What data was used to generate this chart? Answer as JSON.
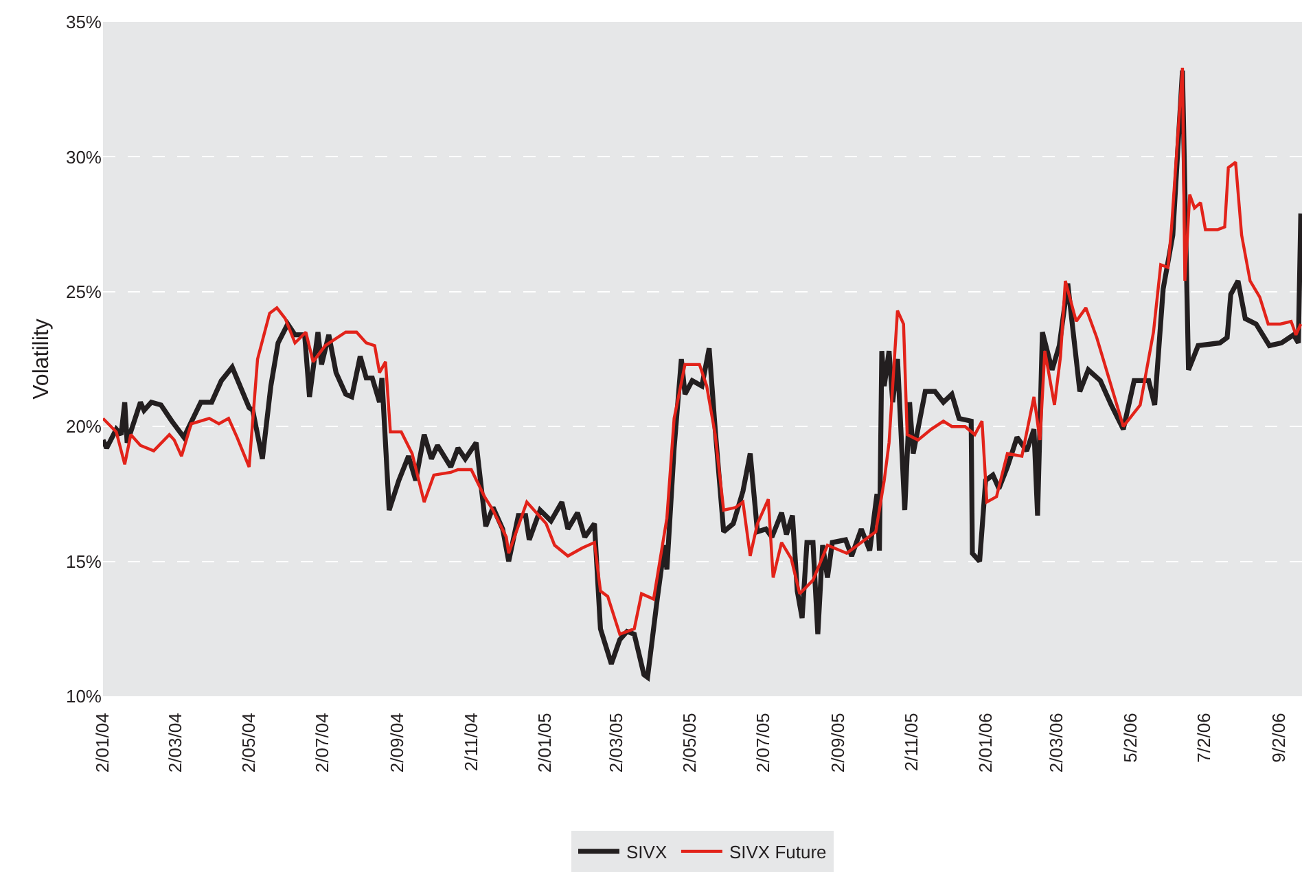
{
  "chart_data": {
    "type": "line",
    "ylabel": "Volatility",
    "grid": "y",
    "legend": "bottom",
    "line_style": "solid",
    "marker": "none",
    "xlim": [
      "2004-01-02",
      "2006-09-21"
    ],
    "xticks": [
      {
        "value": "2004-01-02",
        "label": "2/01/04"
      },
      {
        "value": "2004-03-02",
        "label": "2/03/04"
      },
      {
        "value": "2004-05-02",
        "label": "2/05/04"
      },
      {
        "value": "2004-07-02",
        "label": "2/07/04"
      },
      {
        "value": "2004-09-02",
        "label": "2/09/04"
      },
      {
        "value": "2004-11-02",
        "label": "2/11/04"
      },
      {
        "value": "2005-01-02",
        "label": "2/01/05"
      },
      {
        "value": "2005-03-02",
        "label": "2/03/05"
      },
      {
        "value": "2005-05-02",
        "label": "2/05/05"
      },
      {
        "value": "2005-07-02",
        "label": "2/07/05"
      },
      {
        "value": "2005-09-02",
        "label": "2/09/05"
      },
      {
        "value": "2005-11-02",
        "label": "2/11/05"
      },
      {
        "value": "2006-01-02",
        "label": "2/01/06"
      },
      {
        "value": "2006-03-02",
        "label": "2/03/06"
      },
      {
        "value": "2006-05-02",
        "label": "5/2/06"
      },
      {
        "value": "2006-07-02",
        "label": "7/2/06"
      },
      {
        "value": "2006-09-02",
        "label": "9/2/06"
      }
    ],
    "ylim": [
      10,
      35
    ],
    "yticks": [
      {
        "value": 10,
        "label": "10%"
      },
      {
        "value": 15,
        "label": "15%"
      },
      {
        "value": 20,
        "label": "20%"
      },
      {
        "value": 25,
        "label": "25%"
      },
      {
        "value": 30,
        "label": "30%"
      },
      {
        "value": 35,
        "label": "35%"
      }
    ],
    "series": [
      {
        "name": "SIVX",
        "color": "#231f20",
        "x": [
          "2004-01-02",
          "2004-01-05",
          "2004-01-13",
          "2004-01-17",
          "2004-01-20",
          "2004-01-22",
          "2004-02-02",
          "2004-02-05",
          "2004-02-11",
          "2004-02-19",
          "2004-02-28",
          "2004-03-09",
          "2004-03-23",
          "2004-04-01",
          "2004-04-09",
          "2004-04-18",
          "2004-05-02",
          "2004-05-05",
          "2004-05-13",
          "2004-05-20",
          "2004-05-26",
          "2004-06-03",
          "2004-06-09",
          "2004-06-17",
          "2004-06-21",
          "2004-06-28",
          "2004-07-01",
          "2004-07-07",
          "2004-07-13",
          "2004-07-21",
          "2004-07-26",
          "2004-08-02",
          "2004-08-07",
          "2004-08-12",
          "2004-08-18",
          "2004-08-20",
          "2004-08-26",
          "2004-09-03",
          "2004-09-11",
          "2004-09-17",
          "2004-09-24",
          "2004-09-30",
          "2004-10-05",
          "2004-10-16",
          "2004-10-22",
          "2004-10-28",
          "2004-11-06",
          "2004-11-14",
          "2004-11-20",
          "2004-11-28",
          "2004-12-03",
          "2004-12-11",
          "2004-12-17",
          "2004-12-20",
          "2004-12-29",
          "2005-01-07",
          "2005-01-16",
          "2005-01-21",
          "2005-01-29",
          "2005-02-04",
          "2005-02-12",
          "2005-02-17",
          "2005-02-26",
          "2005-03-05",
          "2005-03-11",
          "2005-03-17",
          "2005-03-25",
          "2005-03-28",
          "2005-04-05",
          "2005-04-11",
          "2005-04-13",
          "2005-04-19",
          "2005-04-25",
          "2005-04-28",
          "2005-05-04",
          "2005-05-12",
          "2005-05-18",
          "2005-05-23",
          "2005-05-30",
          "2005-06-07",
          "2005-06-15",
          "2005-06-21",
          "2005-06-27",
          "2005-07-04",
          "2005-07-09",
          "2005-07-17",
          "2005-07-21",
          "2005-07-26",
          "2005-07-30",
          "2005-08-03",
          "2005-08-07",
          "2005-08-12",
          "2005-08-16",
          "2005-08-20",
          "2005-08-24",
          "2005-08-28",
          "2005-09-08",
          "2005-09-13",
          "2005-09-21",
          "2005-09-28",
          "2005-10-04",
          "2005-10-06",
          "2005-10-08",
          "2005-10-10",
          "2005-10-14",
          "2005-10-17",
          "2005-10-21",
          "2005-10-27",
          "2005-10-31",
          "2005-11-03",
          "2005-11-13",
          "2005-11-21",
          "2005-11-28",
          "2005-12-05",
          "2005-12-11",
          "2005-12-21",
          "2005-12-22",
          "2005-12-28",
          "2006-01-02",
          "2006-01-08",
          "2006-01-13",
          "2006-01-20",
          "2006-01-28",
          "2006-02-05",
          "2006-02-11",
          "2006-02-14",
          "2006-02-18",
          "2006-02-26",
          "2006-03-04",
          "2006-03-11",
          "2006-03-21",
          "2006-03-28",
          "2006-04-07",
          "2006-04-16",
          "2006-04-26",
          "2006-05-05",
          "2006-05-17",
          "2006-05-22",
          "2006-05-29",
          "2006-06-06",
          "2006-06-14",
          "2006-06-19",
          "2006-06-27",
          "2006-07-15",
          "2006-07-21",
          "2006-07-24",
          "2006-07-30",
          "2006-08-05",
          "2006-08-14",
          "2006-08-25",
          "2006-09-04",
          "2006-09-14",
          "2006-09-18",
          "2006-09-20"
        ],
        "values": [
          19.5,
          19.2,
          19.9,
          19.7,
          20.9,
          19.4,
          20.9,
          20.6,
          20.9,
          20.8,
          20.2,
          19.6,
          20.9,
          20.9,
          21.7,
          22.2,
          20.7,
          20.6,
          18.8,
          21.5,
          23.1,
          23.8,
          23.4,
          23.4,
          21.1,
          23.5,
          22.3,
          23.4,
          22.0,
          21.2,
          21.1,
          22.6,
          21.8,
          21.8,
          20.9,
          21.8,
          16.9,
          18.0,
          18.9,
          18.0,
          19.7,
          18.8,
          19.3,
          18.5,
          19.2,
          18.8,
          19.4,
          16.3,
          17.0,
          16.2,
          15.0,
          16.7,
          16.7,
          15.8,
          16.9,
          16.5,
          17.2,
          16.2,
          16.8,
          15.9,
          16.4,
          12.5,
          11.2,
          12.1,
          12.4,
          12.3,
          10.8,
          10.7,
          13.6,
          15.6,
          14.7,
          19.2,
          22.5,
          21.2,
          21.7,
          21.5,
          22.9,
          19.9,
          16.1,
          16.4,
          17.6,
          19.0,
          16.1,
          16.2,
          15.9,
          16.8,
          16.0,
          16.7,
          13.9,
          12.9,
          15.7,
          15.7,
          12.3,
          15.6,
          14.4,
          15.7,
          15.8,
          15.2,
          16.2,
          15.4,
          17.5,
          15.4,
          22.8,
          21.5,
          22.8,
          20.9,
          22.5,
          16.9,
          20.9,
          19.0,
          21.3,
          21.3,
          20.9,
          21.2,
          20.3,
          20.2,
          15.3,
          15.0,
          18.0,
          18.2,
          17.7,
          18.5,
          19.6,
          19.1,
          19.9,
          16.7,
          23.5,
          22.1,
          23.0,
          25.3,
          21.3,
          22.1,
          21.7,
          20.8,
          19.9,
          21.7,
          21.7,
          20.8,
          25.1,
          27.1,
          33.2,
          22.1,
          23.0,
          23.1,
          23.3,
          24.9,
          25.4,
          24.0,
          23.8,
          23.0,
          23.1,
          23.4,
          23.1,
          27.9
        ]
      },
      {
        "name": "SIVX Future",
        "color": "#e2231a",
        "x": [
          "2004-01-02",
          "2004-01-13",
          "2004-01-20",
          "2004-01-25",
          "2004-02-02",
          "2004-02-13",
          "2004-02-26",
          "2004-03-01",
          "2004-03-07",
          "2004-03-15",
          "2004-03-30",
          "2004-04-07",
          "2004-04-15",
          "2004-04-22",
          "2004-05-02",
          "2004-05-09",
          "2004-05-19",
          "2004-05-25",
          "2004-06-01",
          "2004-06-09",
          "2004-06-18",
          "2004-06-24",
          "2004-07-04",
          "2004-07-21",
          "2004-07-30",
          "2004-08-07",
          "2004-08-14",
          "2004-08-18",
          "2004-08-23",
          "2004-08-27",
          "2004-09-05",
          "2004-09-14",
          "2004-09-24",
          "2004-10-02",
          "2004-10-16",
          "2004-10-22",
          "2004-11-02",
          "2004-11-13",
          "2004-11-20",
          "2004-12-01",
          "2004-12-03",
          "2004-12-18",
          "2005-01-03",
          "2005-01-10",
          "2005-01-21",
          "2005-02-02",
          "2005-02-12",
          "2005-02-17",
          "2005-02-23",
          "2005-03-05",
          "2005-03-17",
          "2005-03-23",
          "2005-04-02",
          "2005-04-13",
          "2005-04-19",
          "2005-04-28",
          "2005-05-10",
          "2005-05-16",
          "2005-05-23",
          "2005-05-30",
          "2005-06-09",
          "2005-06-15",
          "2005-06-21",
          "2005-06-27",
          "2005-07-06",
          "2005-07-10",
          "2005-07-17",
          "2005-07-25",
          "2005-08-01",
          "2005-08-12",
          "2005-08-24",
          "2005-09-09",
          "2005-09-21",
          "2005-10-03",
          "2005-10-10",
          "2005-10-14",
          "2005-10-21",
          "2005-10-26",
          "2005-10-29",
          "2005-11-07",
          "2005-11-18",
          "2005-11-28",
          "2005-12-05",
          "2005-12-16",
          "2005-12-24",
          "2005-12-30",
          "2006-01-03",
          "2006-01-11",
          "2006-01-20",
          "2006-02-01",
          "2006-02-11",
          "2006-02-16",
          "2006-02-20",
          "2006-02-28",
          "2006-03-05",
          "2006-03-09",
          "2006-03-18",
          "2006-03-26",
          "2006-04-04",
          "2006-04-12",
          "2006-04-26",
          "2006-05-10",
          "2006-05-21",
          "2006-05-27",
          "2006-06-02",
          "2006-06-05",
          "2006-06-14",
          "2006-06-16",
          "2006-06-20",
          "2006-06-24",
          "2006-06-29",
          "2006-07-03",
          "2006-07-13",
          "2006-07-19",
          "2006-07-22",
          "2006-07-28",
          "2006-08-02",
          "2006-08-09",
          "2006-08-17",
          "2006-08-24",
          "2006-09-03",
          "2006-09-12",
          "2006-09-16",
          "2006-09-20"
        ],
        "values": [
          20.3,
          19.8,
          18.6,
          19.7,
          19.3,
          19.1,
          19.7,
          19.5,
          18.9,
          20.1,
          20.3,
          20.1,
          20.3,
          19.6,
          18.5,
          22.5,
          24.2,
          24.4,
          24.0,
          23.1,
          23.5,
          22.4,
          23.0,
          23.5,
          23.5,
          23.1,
          23.0,
          22.0,
          22.4,
          19.8,
          19.8,
          19.0,
          17.2,
          18.2,
          18.3,
          18.4,
          18.4,
          17.4,
          16.9,
          15.9,
          15.3,
          17.2,
          16.4,
          15.6,
          15.2,
          15.5,
          15.7,
          13.9,
          13.7,
          12.3,
          12.5,
          13.8,
          13.6,
          16.6,
          20.3,
          22.3,
          22.3,
          21.5,
          19.7,
          16.9,
          17.0,
          17.2,
          15.2,
          16.4,
          17.3,
          14.4,
          15.7,
          15.1,
          13.8,
          14.3,
          15.6,
          15.3,
          15.7,
          16.1,
          18.0,
          19.4,
          24.3,
          23.8,
          19.7,
          19.5,
          19.9,
          20.2,
          20.0,
          20.0,
          19.7,
          20.2,
          17.2,
          17.4,
          19.0,
          18.9,
          21.1,
          19.5,
          22.8,
          20.8,
          22.6,
          25.4,
          23.9,
          24.4,
          23.3,
          22.1,
          20.0,
          20.8,
          23.5,
          26.0,
          25.9,
          27.4,
          33.3,
          25.4,
          28.6,
          28.1,
          28.3,
          27.3,
          27.3,
          27.4,
          29.6,
          29.8,
          27.1,
          25.4,
          24.8,
          23.8,
          23.8,
          23.9,
          23.4,
          23.8
        ]
      }
    ]
  }
}
